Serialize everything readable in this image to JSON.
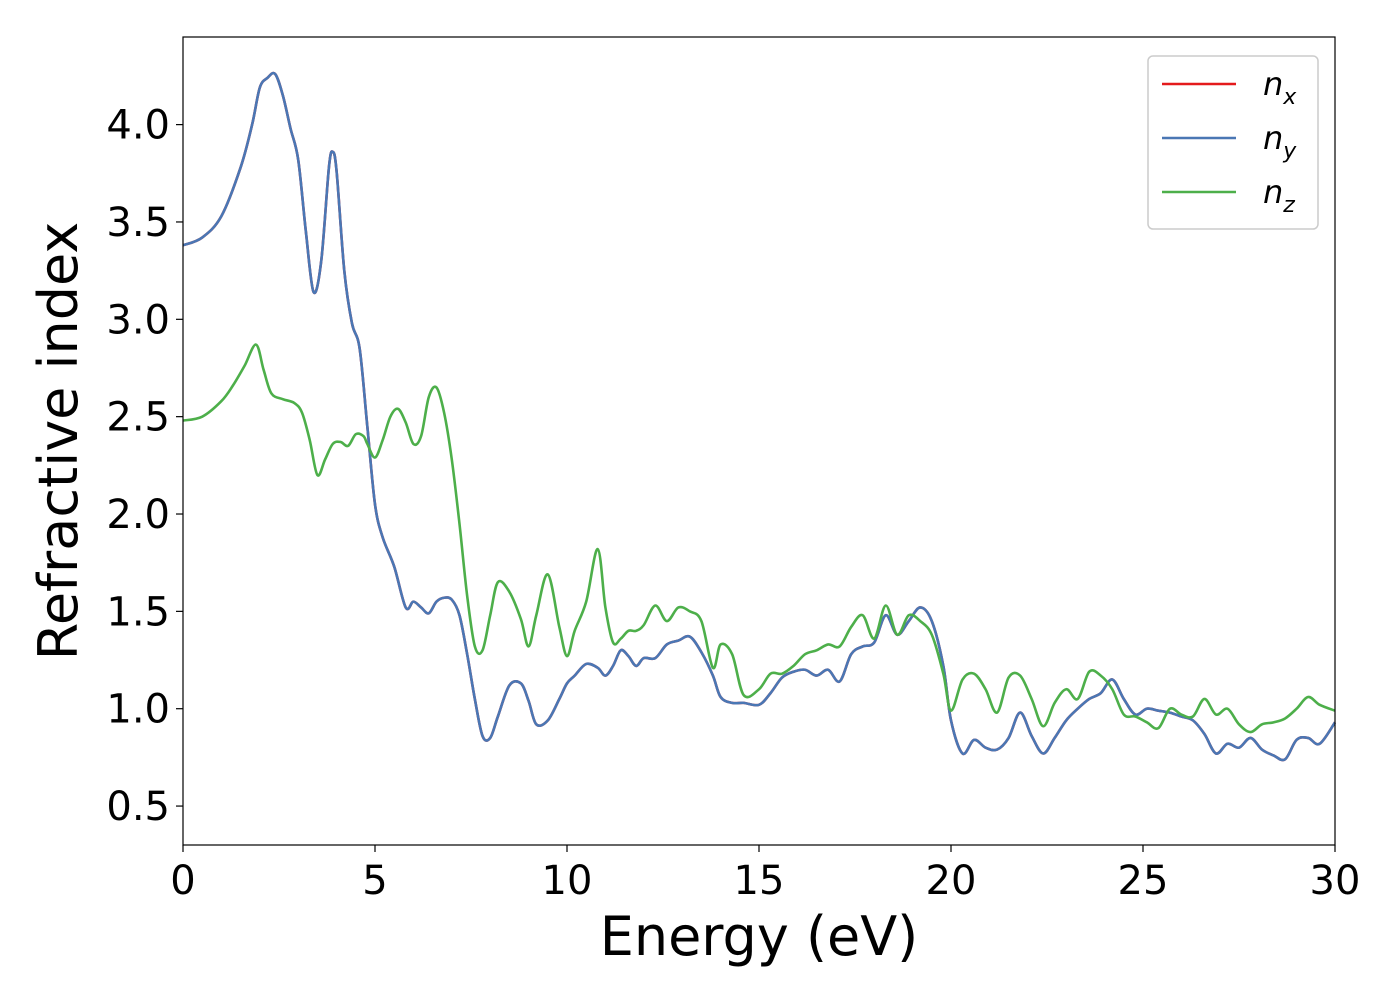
{
  "chart_data": {
    "type": "line",
    "xlabel": "Energy (eV)",
    "ylabel": "Refractive index",
    "xlim": [
      0,
      30
    ],
    "ylim": [
      0.3,
      4.45
    ],
    "xticks": [
      0,
      5,
      10,
      15,
      20,
      25,
      30
    ],
    "xtick_labels": [
      "0",
      "5",
      "10",
      "15",
      "20",
      "25",
      "30"
    ],
    "yticks": [
      0.5,
      1.0,
      1.5,
      2.0,
      2.5,
      3.0,
      3.5,
      4.0
    ],
    "ytick_labels": [
      "0.5",
      "1.0",
      "1.5",
      "2.0",
      "2.5",
      "3.0",
      "3.5",
      "4.0"
    ],
    "grid": false,
    "legend_position": "top-right",
    "series": [
      {
        "name": "n_x",
        "legend_base": "n",
        "legend_sub": "x",
        "color": "#e41a1c",
        "x": [
          0,
          0.5,
          1.0,
          1.5,
          1.8,
          2.0,
          2.2,
          2.4,
          2.6,
          2.8,
          3.0,
          3.2,
          3.4,
          3.6,
          3.8,
          3.9,
          4.0,
          4.2,
          4.4,
          4.6,
          4.8,
          5.0,
          5.2,
          5.5,
          5.8,
          6.0,
          6.2,
          6.4,
          6.6,
          6.8,
          7.0,
          7.2,
          7.4,
          7.6,
          7.8,
          8.0,
          8.2,
          8.5,
          8.8,
          9.0,
          9.2,
          9.5,
          9.8,
          10.0,
          10.2,
          10.5,
          10.8,
          11.0,
          11.2,
          11.4,
          11.6,
          11.8,
          12.0,
          12.3,
          12.6,
          12.9,
          13.2,
          13.5,
          13.8,
          14.0,
          14.3,
          14.6,
          15.0,
          15.3,
          15.6,
          15.9,
          16.2,
          16.5,
          16.8,
          17.1,
          17.4,
          17.7,
          18.0,
          18.3,
          18.6,
          18.9,
          19.2,
          19.5,
          19.8,
          20.0,
          20.3,
          20.6,
          20.9,
          21.2,
          21.5,
          21.8,
          22.1,
          22.4,
          22.7,
          23.0,
          23.3,
          23.6,
          23.9,
          24.2,
          24.5,
          24.8,
          25.1,
          25.4,
          25.7,
          26.0,
          26.3,
          26.6,
          26.9,
          27.2,
          27.5,
          27.8,
          28.1,
          28.4,
          28.7,
          29.0,
          29.3,
          29.6,
          30.0
        ],
        "y": [
          3.38,
          3.42,
          3.53,
          3.78,
          4.0,
          4.19,
          4.24,
          4.26,
          4.15,
          3.98,
          3.82,
          3.45,
          3.14,
          3.3,
          3.78,
          3.86,
          3.76,
          3.25,
          2.98,
          2.85,
          2.45,
          2.05,
          1.88,
          1.73,
          1.52,
          1.55,
          1.52,
          1.49,
          1.55,
          1.57,
          1.56,
          1.48,
          1.28,
          1.05,
          0.86,
          0.85,
          0.96,
          1.12,
          1.13,
          1.04,
          0.92,
          0.94,
          1.05,
          1.13,
          1.17,
          1.23,
          1.21,
          1.17,
          1.22,
          1.3,
          1.27,
          1.22,
          1.26,
          1.26,
          1.33,
          1.35,
          1.37,
          1.29,
          1.17,
          1.06,
          1.03,
          1.03,
          1.02,
          1.08,
          1.16,
          1.19,
          1.2,
          1.17,
          1.2,
          1.14,
          1.28,
          1.32,
          1.34,
          1.48,
          1.38,
          1.45,
          1.52,
          1.45,
          1.22,
          0.94,
          0.77,
          0.84,
          0.8,
          0.79,
          0.85,
          0.98,
          0.86,
          0.77,
          0.85,
          0.94,
          1.0,
          1.05,
          1.08,
          1.15,
          1.05,
          0.97,
          1.0,
          0.99,
          0.98,
          0.96,
          0.94,
          0.87,
          0.77,
          0.82,
          0.8,
          0.85,
          0.79,
          0.76,
          0.74,
          0.84,
          0.85,
          0.82,
          0.93
        ]
      },
      {
        "name": "n_y",
        "legend_base": "n",
        "legend_sub": "y",
        "color": "#4a77b4",
        "x": [
          0,
          0.5,
          1.0,
          1.5,
          1.8,
          2.0,
          2.2,
          2.4,
          2.6,
          2.8,
          3.0,
          3.2,
          3.4,
          3.6,
          3.8,
          3.9,
          4.0,
          4.2,
          4.4,
          4.6,
          4.8,
          5.0,
          5.2,
          5.5,
          5.8,
          6.0,
          6.2,
          6.4,
          6.6,
          6.8,
          7.0,
          7.2,
          7.4,
          7.6,
          7.8,
          8.0,
          8.2,
          8.5,
          8.8,
          9.0,
          9.2,
          9.5,
          9.8,
          10.0,
          10.2,
          10.5,
          10.8,
          11.0,
          11.2,
          11.4,
          11.6,
          11.8,
          12.0,
          12.3,
          12.6,
          12.9,
          13.2,
          13.5,
          13.8,
          14.0,
          14.3,
          14.6,
          15.0,
          15.3,
          15.6,
          15.9,
          16.2,
          16.5,
          16.8,
          17.1,
          17.4,
          17.7,
          18.0,
          18.3,
          18.6,
          18.9,
          19.2,
          19.5,
          19.8,
          20.0,
          20.3,
          20.6,
          20.9,
          21.2,
          21.5,
          21.8,
          22.1,
          22.4,
          22.7,
          23.0,
          23.3,
          23.6,
          23.9,
          24.2,
          24.5,
          24.8,
          25.1,
          25.4,
          25.7,
          26.0,
          26.3,
          26.6,
          26.9,
          27.2,
          27.5,
          27.8,
          28.1,
          28.4,
          28.7,
          29.0,
          29.3,
          29.6,
          30.0
        ],
        "y": [
          3.38,
          3.42,
          3.53,
          3.78,
          4.0,
          4.19,
          4.24,
          4.26,
          4.15,
          3.98,
          3.82,
          3.45,
          3.14,
          3.3,
          3.78,
          3.86,
          3.76,
          3.25,
          2.98,
          2.85,
          2.45,
          2.05,
          1.88,
          1.73,
          1.52,
          1.55,
          1.52,
          1.49,
          1.55,
          1.57,
          1.56,
          1.48,
          1.28,
          1.05,
          0.86,
          0.85,
          0.96,
          1.12,
          1.13,
          1.04,
          0.92,
          0.94,
          1.05,
          1.13,
          1.17,
          1.23,
          1.21,
          1.17,
          1.22,
          1.3,
          1.27,
          1.22,
          1.26,
          1.26,
          1.33,
          1.35,
          1.37,
          1.29,
          1.17,
          1.06,
          1.03,
          1.03,
          1.02,
          1.08,
          1.16,
          1.19,
          1.2,
          1.17,
          1.2,
          1.14,
          1.28,
          1.32,
          1.34,
          1.48,
          1.38,
          1.45,
          1.52,
          1.45,
          1.22,
          0.94,
          0.77,
          0.84,
          0.8,
          0.79,
          0.85,
          0.98,
          0.86,
          0.77,
          0.85,
          0.94,
          1.0,
          1.05,
          1.08,
          1.15,
          1.05,
          0.97,
          1.0,
          0.99,
          0.98,
          0.96,
          0.94,
          0.87,
          0.77,
          0.82,
          0.8,
          0.85,
          0.79,
          0.76,
          0.74,
          0.84,
          0.85,
          0.82,
          0.93
        ]
      },
      {
        "name": "n_z",
        "legend_base": "n",
        "legend_sub": "z",
        "color": "#4daf4a",
        "x": [
          0,
          0.5,
          1.0,
          1.3,
          1.6,
          1.9,
          2.1,
          2.3,
          2.6,
          2.9,
          3.1,
          3.3,
          3.5,
          3.7,
          3.9,
          4.1,
          4.3,
          4.5,
          4.7,
          4.8,
          5.0,
          5.2,
          5.4,
          5.6,
          5.8,
          6.0,
          6.2,
          6.4,
          6.6,
          6.8,
          7.0,
          7.2,
          7.4,
          7.6,
          7.8,
          8.0,
          8.2,
          8.5,
          8.8,
          9.0,
          9.2,
          9.5,
          9.8,
          10.0,
          10.2,
          10.5,
          10.8,
          11.0,
          11.2,
          11.4,
          11.6,
          11.8,
          12.0,
          12.3,
          12.6,
          12.9,
          13.2,
          13.5,
          13.8,
          14.0,
          14.3,
          14.6,
          15.0,
          15.3,
          15.6,
          15.9,
          16.2,
          16.5,
          16.8,
          17.1,
          17.4,
          17.7,
          18.0,
          18.3,
          18.6,
          18.9,
          19.2,
          19.5,
          19.8,
          20.0,
          20.3,
          20.6,
          20.9,
          21.2,
          21.5,
          21.8,
          22.1,
          22.4,
          22.7,
          23.0,
          23.3,
          23.6,
          23.9,
          24.2,
          24.5,
          24.8,
          25.1,
          25.4,
          25.7,
          26.0,
          26.3,
          26.6,
          26.9,
          27.2,
          27.5,
          27.8,
          28.1,
          28.4,
          28.7,
          29.0,
          29.3,
          29.6,
          30.0
        ],
        "y": [
          2.48,
          2.5,
          2.58,
          2.66,
          2.76,
          2.87,
          2.74,
          2.62,
          2.59,
          2.57,
          2.52,
          2.38,
          2.2,
          2.28,
          2.36,
          2.37,
          2.35,
          2.41,
          2.4,
          2.36,
          2.29,
          2.38,
          2.5,
          2.54,
          2.47,
          2.36,
          2.4,
          2.6,
          2.65,
          2.52,
          2.28,
          1.95,
          1.58,
          1.32,
          1.3,
          1.48,
          1.65,
          1.6,
          1.46,
          1.32,
          1.48,
          1.69,
          1.42,
          1.27,
          1.4,
          1.55,
          1.82,
          1.52,
          1.34,
          1.36,
          1.4,
          1.4,
          1.43,
          1.53,
          1.45,
          1.52,
          1.5,
          1.45,
          1.21,
          1.33,
          1.28,
          1.07,
          1.1,
          1.18,
          1.18,
          1.22,
          1.28,
          1.3,
          1.33,
          1.32,
          1.42,
          1.48,
          1.36,
          1.53,
          1.38,
          1.48,
          1.45,
          1.38,
          1.18,
          0.99,
          1.15,
          1.18,
          1.1,
          0.98,
          1.16,
          1.17,
          1.05,
          0.91,
          1.03,
          1.1,
          1.05,
          1.19,
          1.17,
          1.1,
          0.97,
          0.96,
          0.93,
          0.9,
          1.0,
          0.97,
          0.96,
          1.05,
          0.97,
          1.0,
          0.92,
          0.88,
          0.92,
          0.93,
          0.95,
          1.0,
          1.06,
          1.02,
          0.99
        ]
      }
    ]
  }
}
